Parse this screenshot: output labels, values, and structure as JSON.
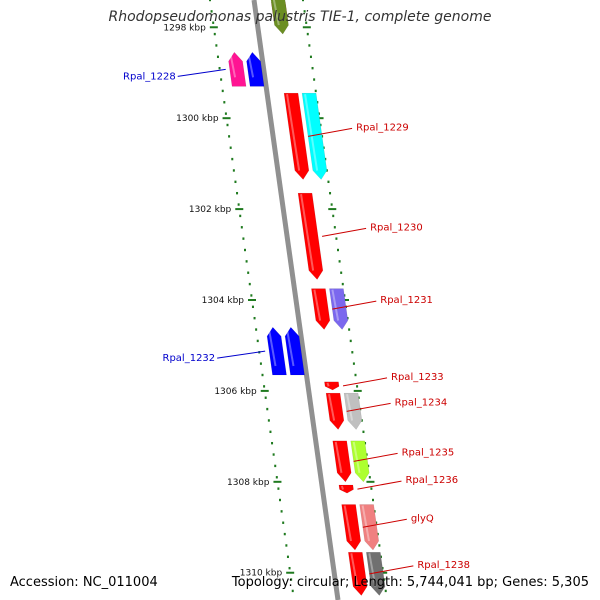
{
  "title": "Rhodopseudomonas palustris TIE-1, complete genome",
  "accession": "Accession: NC_011004",
  "summary": "Topology: circular; Length: 5,744,041 bp; Genes: 5,305",
  "colors": {
    "backbone": "#909090",
    "tick": "#1f7a1f",
    "label_forward": "#cc0000",
    "label_reverse": "#0000cc"
  },
  "ticks": [
    {
      "label": "1298 kbp",
      "kbp": 1298
    },
    {
      "label": "1300 kbp",
      "kbp": 1300
    },
    {
      "label": "1302 kbp",
      "kbp": 1302
    },
    {
      "label": "1304 kbp",
      "kbp": 1304
    },
    {
      "label": "1306 kbp",
      "kbp": 1306
    },
    {
      "label": "1308 kbp",
      "kbp": 1308
    },
    {
      "label": "1310 kbp",
      "kbp": 1310
    }
  ],
  "genes": [
    {
      "label": "",
      "start": 1297.45,
      "end": 1298.08,
      "strand": "+",
      "color": "#ff0000"
    },
    {
      "label": "",
      "start": 1297.35,
      "end": 1298.15,
      "strand": "+",
      "color": "#6b8e23"
    },
    {
      "label": "Rpal_1228",
      "start": 1298.55,
      "end": 1299.3,
      "strand": "-",
      "color": "#ff1493"
    },
    {
      "label": "",
      "start": 1298.55,
      "end": 1299.3,
      "strand": "-",
      "color": "#0000ff"
    },
    {
      "label": "Rpal_1229",
      "start": 1299.45,
      "end": 1301.35,
      "strand": "+",
      "color": "#ff0000"
    },
    {
      "label": "",
      "start": 1299.45,
      "end": 1301.35,
      "strand": "+",
      "color": "#00ffff"
    },
    {
      "label": "Rpal_1230",
      "start": 1301.65,
      "end": 1303.55,
      "strand": "+",
      "color": "#ff0000"
    },
    {
      "label": "Rpal_1231",
      "start": 1303.75,
      "end": 1304.65,
      "strand": "+",
      "color": "#ff0000"
    },
    {
      "label": "",
      "start": 1303.75,
      "end": 1304.65,
      "strand": "+",
      "color": "#7b68ee"
    },
    {
      "label": "Rpal_1232",
      "start": 1304.6,
      "end": 1305.65,
      "strand": "-",
      "color": "#0000ff"
    },
    {
      "label": "",
      "start": 1304.6,
      "end": 1305.65,
      "strand": "-",
      "color": "#0000ff"
    },
    {
      "label": "Rpal_1233",
      "start": 1305.8,
      "end": 1305.98,
      "strand": "+",
      "color": "#ff0000"
    },
    {
      "label": "Rpal_1234",
      "start": 1306.05,
      "end": 1306.85,
      "strand": "+",
      "color": "#ff0000"
    },
    {
      "label": "",
      "start": 1306.05,
      "end": 1306.85,
      "strand": "+",
      "color": "#c0c0c0"
    },
    {
      "label": "Rpal_1235",
      "start": 1307.1,
      "end": 1308.0,
      "strand": "+",
      "color": "#ff0000"
    },
    {
      "label": "",
      "start": 1307.1,
      "end": 1308.0,
      "strand": "+",
      "color": "#adff2f"
    },
    {
      "label": "Rpal_1236",
      "start": 1308.07,
      "end": 1308.25,
      "strand": "+",
      "color": "#ff0000"
    },
    {
      "label": "glyQ",
      "start": 1308.5,
      "end": 1309.5,
      "strand": "+",
      "color": "#ff0000"
    },
    {
      "label": "",
      "start": 1308.5,
      "end": 1309.5,
      "strand": "+",
      "color": "#f08080"
    },
    {
      "label": "Rpal_1238",
      "start": 1309.55,
      "end": 1310.5,
      "strand": "+",
      "color": "#ff0000"
    },
    {
      "label": "",
      "start": 1309.55,
      "end": 1310.5,
      "strand": "+",
      "color": "#707070"
    }
  ]
}
